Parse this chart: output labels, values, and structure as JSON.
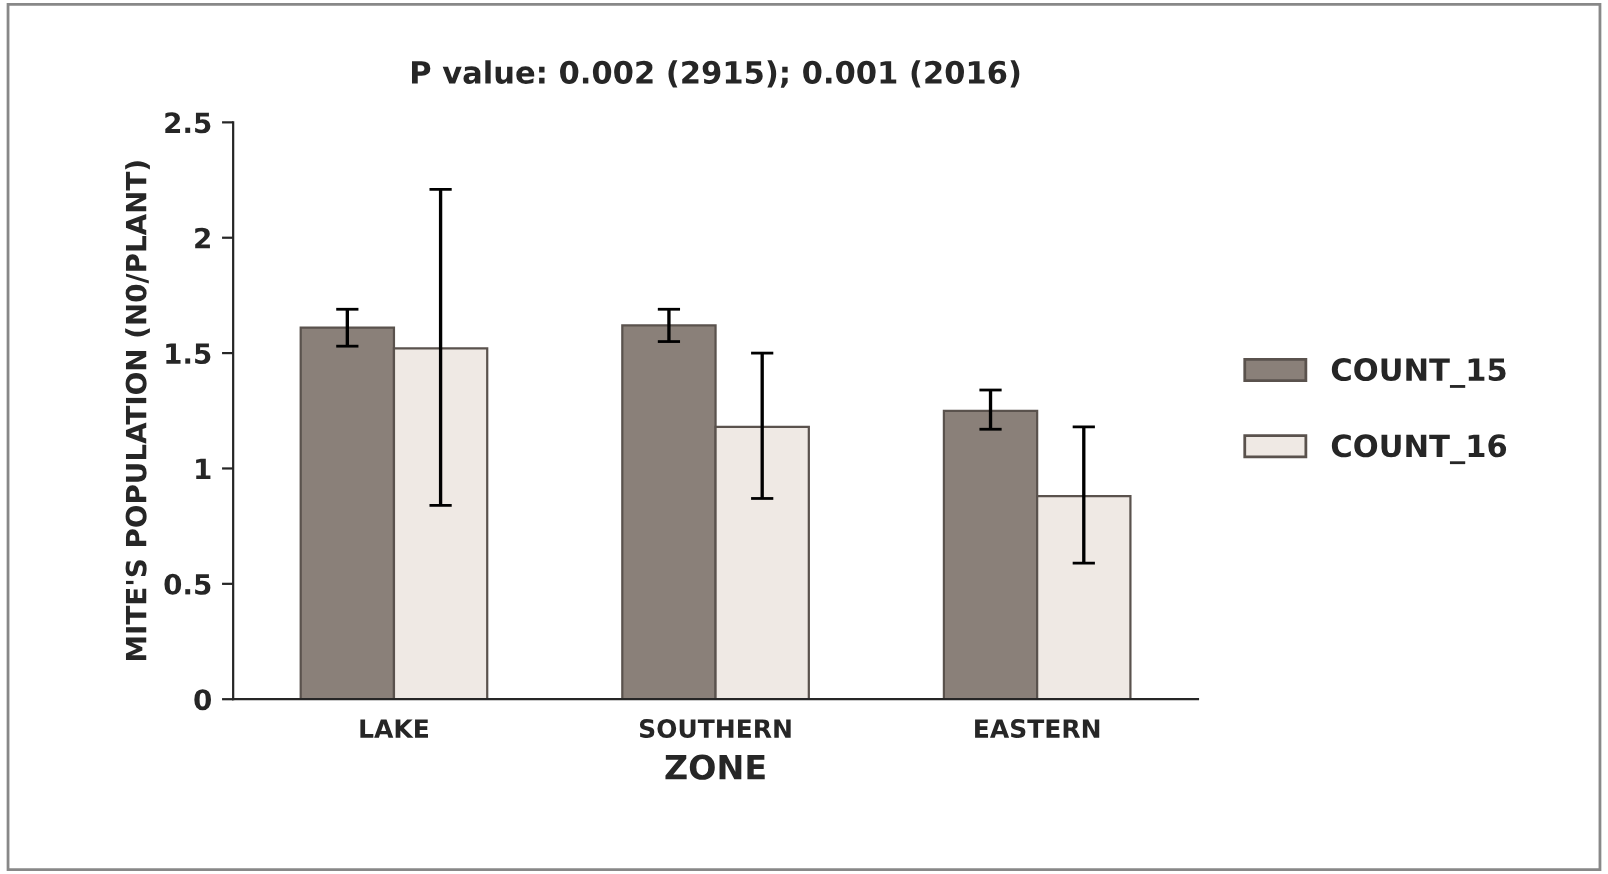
{
  "chart_data": {
    "type": "bar",
    "title": "P value: 0.002 (2915); 0.001 (2016)",
    "xlabel": "ZONE",
    "ylabel": "MITE'S POPULATION (N0/PLANT)",
    "categories": [
      "LAKE",
      "SOUTHERN",
      "EASTERN"
    ],
    "series": [
      {
        "name": "COUNT_15",
        "color": "#8a8079",
        "values": [
          1.61,
          1.62,
          1.25
        ],
        "errors": [
          [
            1.53,
            1.69
          ],
          [
            1.55,
            1.69
          ],
          [
            1.17,
            1.34
          ]
        ]
      },
      {
        "name": "COUNT_16",
        "color": "#efe9e4",
        "values": [
          1.52,
          1.18,
          0.88
        ],
        "errors": [
          [
            0.84,
            2.21
          ],
          [
            0.87,
            1.5
          ],
          [
            0.59,
            1.18
          ]
        ]
      }
    ],
    "ylim": [
      0,
      2.5
    ],
    "yticks": [
      0,
      0.5,
      1,
      1.5,
      2,
      2.5
    ],
    "grid": false,
    "legend": "right"
  }
}
